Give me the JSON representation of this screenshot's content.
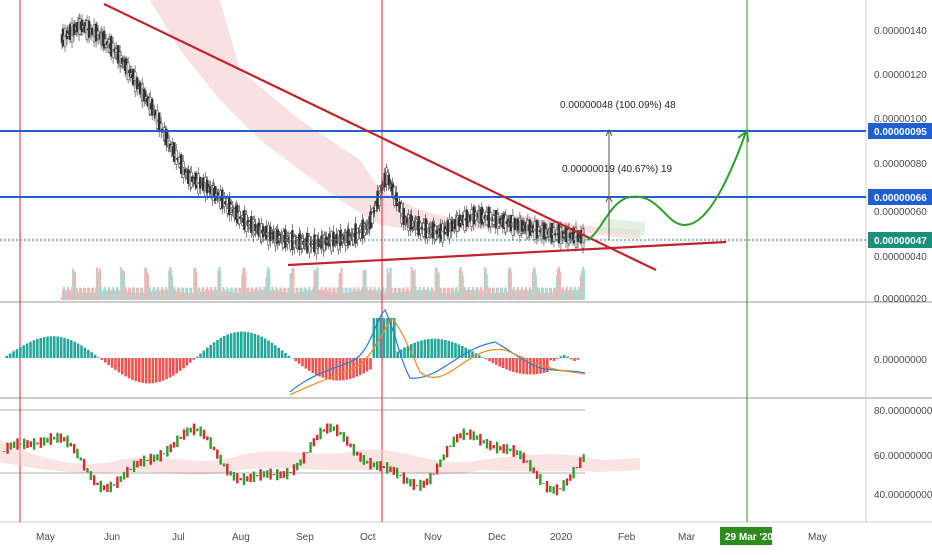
{
  "chart_data": {
    "type": "candlestick",
    "symbol_quote_precision": 8,
    "x_axis": {
      "ticks": [
        "May",
        "Jun",
        "Jul",
        "Aug",
        "Sep",
        "Oct",
        "Nov",
        "Dec",
        "2020",
        "Feb",
        "Mar",
        "29 Mar '20",
        "May"
      ],
      "highlight_tick": "29 Mar '20"
    },
    "price_pane": {
      "y_ticks": [
        "0.00000140",
        "0.00000120",
        "0.00000100",
        "0.00000080",
        "0.00000060",
        "0.00000040",
        "0.00000020"
      ],
      "horizontal_levels": [
        {
          "label": "0.00000095",
          "value": 9.5e-07,
          "color": "#1f5fd1"
        },
        {
          "label": "0.00000066",
          "value": 6.6e-07,
          "color": "#1f5fd1"
        }
      ],
      "last_price_label": "0.00000047",
      "last_price": 4.7e-07,
      "measurements": [
        {
          "text": "0.00000048 (100.09%) 48",
          "from": 4.7e-07,
          "to": 9.5e-07
        },
        {
          "text": "0.00000019 (40.67%) 19",
          "from": 4.7e-07,
          "to": 6.6e-07
        }
      ],
      "candles_approx_close": [
        1.36,
        1.42,
        1.38,
        1.3,
        1.18,
        1.05,
        0.88,
        0.74,
        0.7,
        0.63,
        0.55,
        0.5,
        0.47,
        0.45,
        0.44,
        0.46,
        0.47,
        0.52,
        0.75,
        0.55,
        0.51,
        0.49,
        0.54,
        0.57,
        0.55,
        0.53,
        0.51,
        0.49,
        0.48,
        0.47
      ]
    },
    "macd_pane": {
      "y_ticks": [
        "0.00000000"
      ]
    },
    "oscillator_pane": {
      "y_ticks": [
        "80.00000000",
        "60.00000000",
        "40.00000000"
      ],
      "y_range": [
        30,
        88
      ]
    },
    "colors": {
      "up": "#26a69a",
      "down": "#ef5350",
      "trendline": "#c0232b",
      "projection": "#2ca02c",
      "level": "#1f5fd1",
      "last_price": "#1a8f7d",
      "date_marker": "#2e8b1e"
    }
  }
}
